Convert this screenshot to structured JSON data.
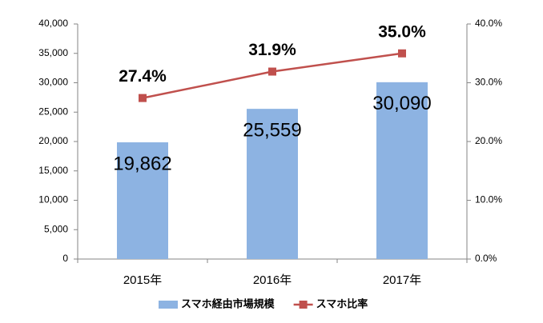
{
  "chart_data": {
    "type": "combo",
    "categories": [
      "2015年",
      "2016年",
      "2017年"
    ],
    "series": [
      {
        "name": "スマホ経由市場規模",
        "type": "bar",
        "color": "#8db3e2",
        "values": [
          19862,
          25559,
          30090
        ],
        "value_labels": [
          "19,862",
          "25,559",
          "30,090"
        ]
      },
      {
        "name": "スマホ比率",
        "type": "line",
        "axis": "y2",
        "color": "#c0504d",
        "values": [
          27.4,
          31.9,
          35.0
        ],
        "value_labels": [
          "27.4%",
          "31.9%",
          "35.0%"
        ]
      }
    ],
    "ylim": [
      0,
      40000
    ],
    "yticks": [
      0,
      {
        "value": 5000,
        "label": "5,000"
      },
      {
        "value": 10000,
        "label": "10,000"
      },
      {
        "value": 15000,
        "label": "15,000"
      },
      {
        "value": 20000,
        "label": "20,000"
      },
      {
        "value": 25000,
        "label": "25,000"
      },
      {
        "value": 30000,
        "label": "30,000"
      },
      {
        "value": 35000,
        "label": "35,000"
      },
      {
        "value": 40000,
        "label": "40,000"
      }
    ],
    "y2lim": [
      0,
      40
    ],
    "y2ticks": [
      {
        "value": 0,
        "label": "0.0%"
      },
      {
        "value": 10,
        "label": "10.0%"
      },
      {
        "value": 20,
        "label": "20.0%"
      },
      {
        "value": 30,
        "label": "30.0%"
      },
      {
        "value": 40,
        "label": "40.0%"
      }
    ],
    "legend": "bottom"
  }
}
